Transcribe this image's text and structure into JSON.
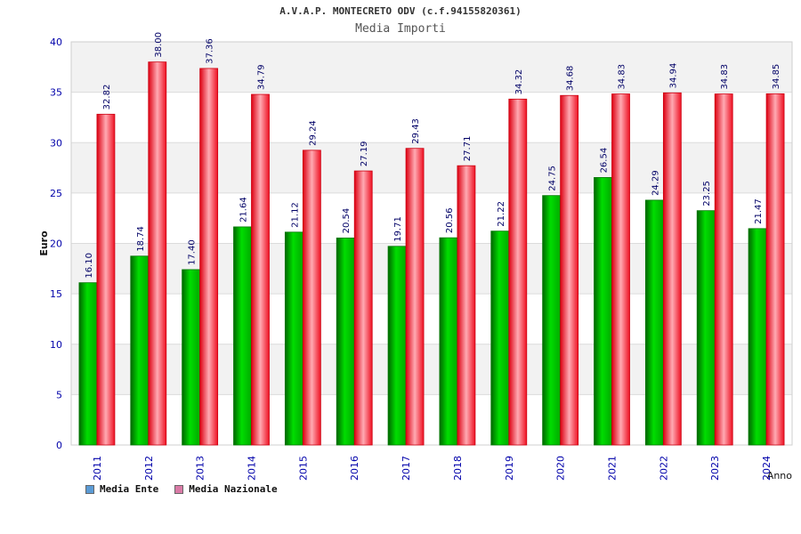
{
  "chart_data": {
    "type": "bar",
    "title": "A.V.A.P. MONTECRETO ODV (c.f.94155820361)",
    "subtitle": "Media Importi",
    "xlabel": "Anno",
    "ylabel": "Euro",
    "ylim": [
      0,
      40
    ],
    "yticks": [
      0,
      5,
      10,
      15,
      20,
      25,
      30,
      35,
      40
    ],
    "categories": [
      "2011",
      "2012",
      "2013",
      "2014",
      "2015",
      "2016",
      "2017",
      "2018",
      "2019",
      "2020",
      "2021",
      "2022",
      "2023",
      "2024"
    ],
    "series": [
      {
        "name": "Media Ente",
        "color": "#00aa00",
        "legend_color": "#5b9bd5",
        "values": [
          16.1,
          18.74,
          17.4,
          21.64,
          21.12,
          20.54,
          19.71,
          20.56,
          21.22,
          24.75,
          26.54,
          24.29,
          23.25,
          21.47
        ],
        "labels": [
          "16.10",
          "18.74",
          "17.40",
          "21.64",
          "21.12",
          "20.54",
          "19.71",
          "20.56",
          "21.22",
          "24.75",
          "26.54",
          "24.29",
          "23.25",
          "21.47"
        ]
      },
      {
        "name": "Media Nazionale",
        "color": "#ee1122",
        "legend_color": "#d97aa6",
        "values": [
          32.82,
          38.0,
          37.36,
          34.79,
          29.24,
          27.19,
          29.43,
          27.71,
          34.32,
          34.68,
          34.83,
          34.94,
          34.83,
          34.85
        ],
        "labels": [
          "32.82",
          "38.00",
          "37.36",
          "34.79",
          "29.24",
          "27.19",
          "29.43",
          "27.71",
          "34.32",
          "34.68",
          "34.83",
          "34.94",
          "34.83",
          "34.85"
        ]
      }
    ],
    "grid": true,
    "legend_position": "bottom-left"
  }
}
